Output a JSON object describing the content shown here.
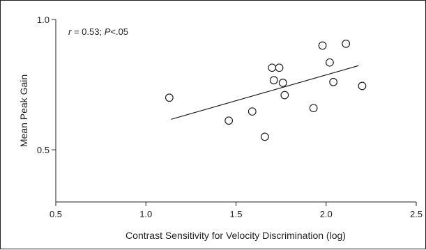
{
  "chart_data": {
    "type": "scatter",
    "xlabel": "Contrast Sensitivity for Velocity Discrimination (log)",
    "ylabel": "Mean Peak Gain",
    "xlim": [
      0.5,
      2.5
    ],
    "ylim": [
      0.3,
      1.0
    ],
    "xticks": [
      "0.5",
      "1.0",
      "1.5",
      "2.0",
      "2.5"
    ],
    "xtick_values": [
      0.5,
      1.0,
      1.5,
      2.0,
      2.5
    ],
    "yticks": [
      "0.5",
      "1.0"
    ],
    "ytick_values": [
      0.5,
      1.0
    ],
    "grid": false,
    "annotation": {
      "r_symbol": "r",
      "r_text": " = 0.53; ",
      "p_symbol": "P",
      "p_text": "<.05"
    },
    "points": [
      {
        "x": 1.13,
        "y": 0.7
      },
      {
        "x": 1.46,
        "y": 0.612
      },
      {
        "x": 1.59,
        "y": 0.647
      },
      {
        "x": 1.66,
        "y": 0.55
      },
      {
        "x": 1.7,
        "y": 0.815
      },
      {
        "x": 1.71,
        "y": 0.767
      },
      {
        "x": 1.74,
        "y": 0.815
      },
      {
        "x": 1.76,
        "y": 0.757
      },
      {
        "x": 1.77,
        "y": 0.71
      },
      {
        "x": 1.93,
        "y": 0.66
      },
      {
        "x": 1.98,
        "y": 0.9
      },
      {
        "x": 2.02,
        "y": 0.835
      },
      {
        "x": 2.04,
        "y": 0.76
      },
      {
        "x": 2.11,
        "y": 0.907
      },
      {
        "x": 2.2,
        "y": 0.745
      }
    ],
    "fit_line": {
      "x": [
        1.14,
        2.18
      ],
      "y": [
        0.617,
        0.823
      ]
    }
  }
}
